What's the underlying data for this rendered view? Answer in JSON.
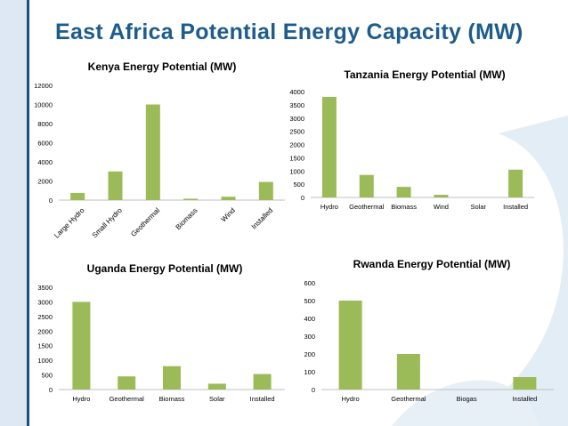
{
  "slide": {
    "title": "East Africa Potential Energy Capacity (MW)",
    "bar_color": "#9bbb59",
    "title_color": "#1d5c8b"
  },
  "chart_data": [
    {
      "id": "kenya",
      "type": "bar",
      "title": "Kenya Energy Potential (MW)",
      "categories": [
        "Large Hydro",
        "Small Hydro",
        "Geothermal",
        "Biomass",
        "Wind",
        "Installed"
      ],
      "values": [
        750,
        3000,
        10000,
        150,
        350,
        1900
      ],
      "ylim": [
        0,
        12000
      ],
      "yticks": [
        0,
        2000,
        4000,
        6000,
        8000,
        10000,
        12000
      ],
      "xlabel": "",
      "ylabel": "",
      "grid": false
    },
    {
      "id": "tanzania",
      "type": "bar",
      "title": "Tanzania Energy Potential (MW)",
      "categories": [
        "Hydro",
        "Geothermal",
        "Biomass",
        "Wind",
        "Solar",
        "Installed"
      ],
      "values": [
        3800,
        850,
        400,
        100,
        0,
        1050
      ],
      "ylim": [
        0,
        4000
      ],
      "yticks": [
        0,
        500,
        1000,
        1500,
        2000,
        2500,
        3000,
        3500,
        4000
      ],
      "xlabel": "",
      "ylabel": "",
      "grid": false
    },
    {
      "id": "uganda",
      "type": "bar",
      "title": "Uganda Energy Potential (MW)",
      "categories": [
        "Hydro",
        "Geothermal",
        "Biomass",
        "Solar",
        "Installed"
      ],
      "values": [
        3000,
        450,
        800,
        200,
        530
      ],
      "ylim": [
        0,
        3500
      ],
      "yticks": [
        0,
        500,
        1000,
        1500,
        2000,
        2500,
        3000,
        3500
      ],
      "xlabel": "",
      "ylabel": "",
      "grid": false
    },
    {
      "id": "rwanda",
      "type": "bar",
      "title": "Rwanda Energy Potential (MW)",
      "categories": [
        "Hydro",
        "Geothermal",
        "Biogas",
        "Installed"
      ],
      "values": [
        500,
        200,
        0,
        70
      ],
      "ylim": [
        0,
        600
      ],
      "yticks": [
        0,
        100,
        200,
        300,
        400,
        500,
        600
      ],
      "xlabel": "",
      "ylabel": "",
      "grid": false
    }
  ]
}
